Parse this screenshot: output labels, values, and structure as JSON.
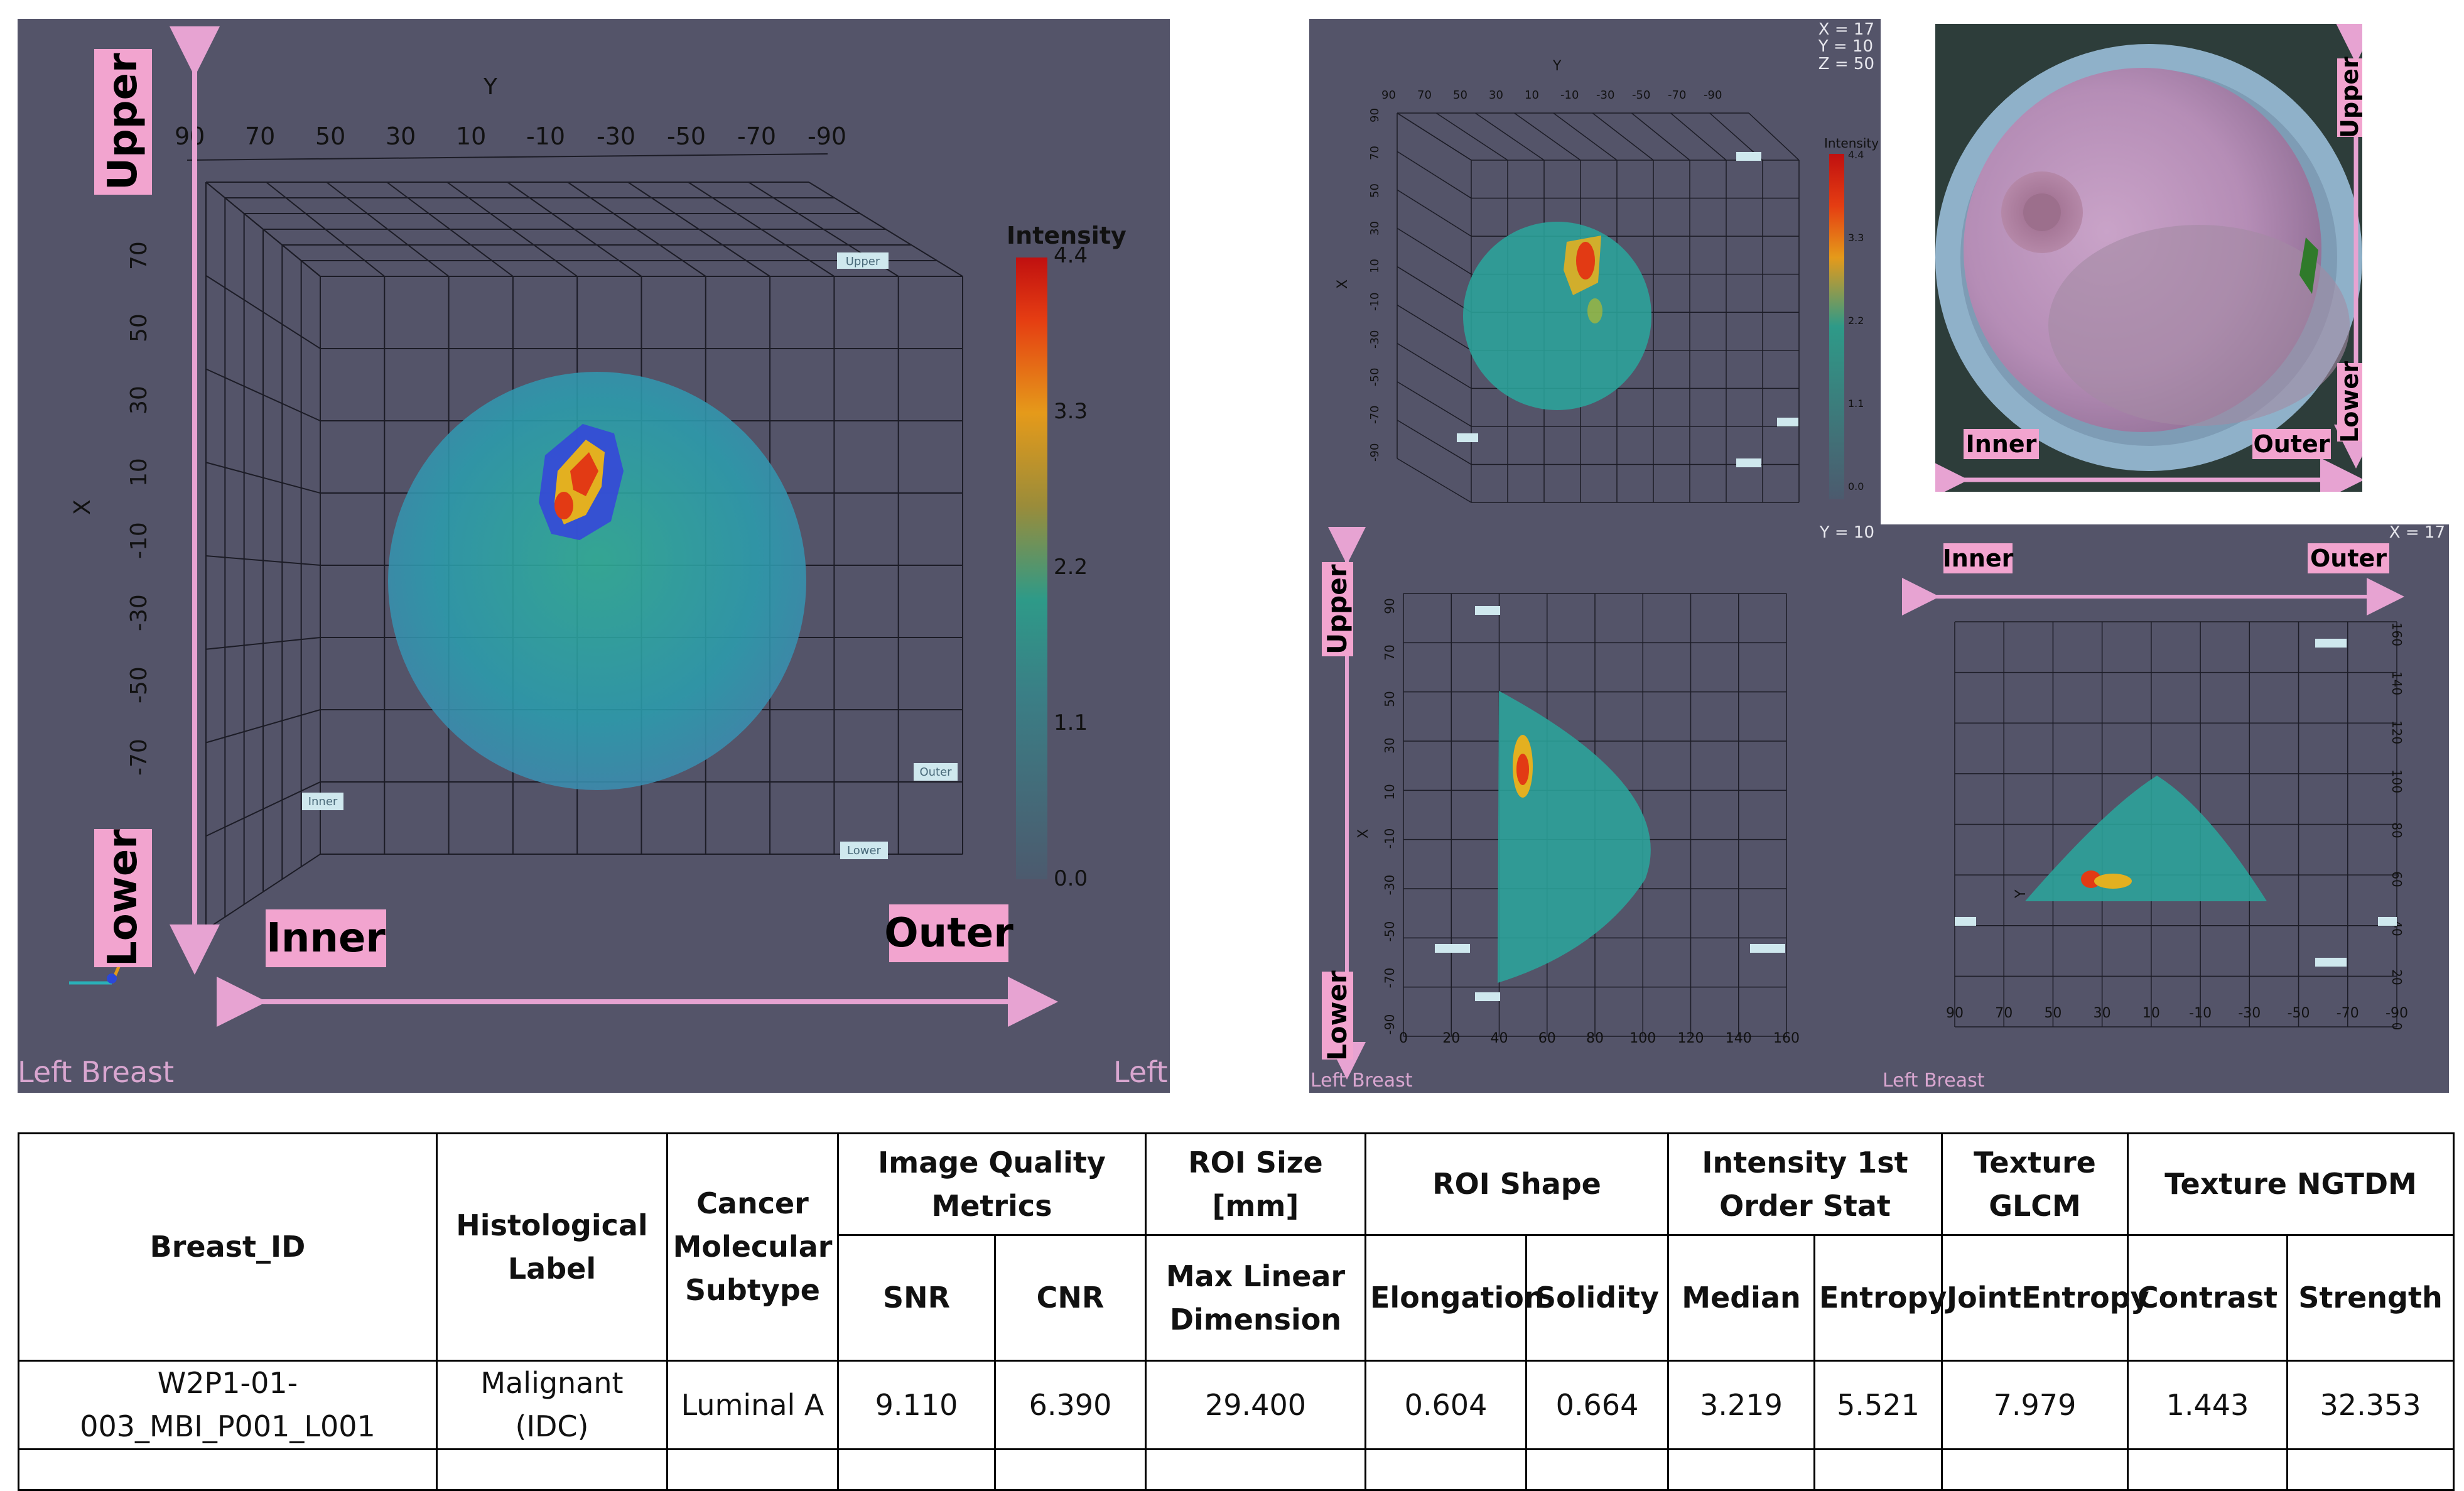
{
  "panels": {
    "main_3d": {
      "y_axis_title": "Y",
      "y_ticks": [
        "90",
        "70",
        "50",
        "30",
        "10",
        "-10",
        "-30",
        "-50",
        "-70",
        "-90"
      ],
      "x_axis_title": "X",
      "x_ticks": [
        "70",
        "50",
        "30",
        "10",
        "-10",
        "-30",
        "-50",
        "-70"
      ],
      "upper": "Upper",
      "lower": "Lower",
      "inner": "Inner",
      "outer": "Outer",
      "colorbar_title": "Intensity",
      "colorbar_ticks": [
        "4.4",
        "3.3",
        "2.2",
        "1.1",
        "0.0"
      ],
      "markers": [
        "Upper",
        "Inner",
        "Outer",
        "Lower"
      ],
      "footer_left": "Left Breast",
      "footer_right": "Left"
    },
    "top_3d": {
      "coords": "X = 17\nY = 10\nZ = 50",
      "y_axis_title": "Y",
      "y_ticks": [
        "90",
        "70",
        "50",
        "30",
        "10",
        "-10",
        "-30",
        "-50",
        "-70",
        "-90"
      ],
      "x_axis_title": "X",
      "x_ticks": [
        "90",
        "70",
        "50",
        "30",
        "10",
        "-10",
        "-30",
        "-50",
        "-70",
        "-90"
      ],
      "colorbar_title": "Intensity",
      "colorbar_ticks": [
        "4.4",
        "3.3",
        "2.2",
        "1.1",
        "0.0"
      ]
    },
    "photo": {
      "upper": "Upper",
      "lower": "Lower",
      "inner": "Inner",
      "outer": "Outer"
    },
    "side_view": {
      "coords": "Y = 10",
      "upper": "Upper",
      "lower": "Lower",
      "x_axis_title": "X",
      "y_ticks": [
        "90",
        "70",
        "50",
        "30",
        "10",
        "-10",
        "-30",
        "-50",
        "-70",
        "-90"
      ],
      "x_ticks": [
        "0",
        "20",
        "40",
        "60",
        "80",
        "100",
        "120",
        "140",
        "160"
      ],
      "footer": "Left Breast"
    },
    "front_view": {
      "coords": "X = 17",
      "inner": "Inner",
      "outer": "Outer",
      "y_axis_title": "Y",
      "right_ticks": [
        "160",
        "140",
        "120",
        "100",
        "80",
        "60",
        "40",
        "20",
        "0"
      ],
      "x_ticks": [
        "90",
        "70",
        "50",
        "30",
        "10",
        "-10",
        "-30",
        "-50",
        "-70",
        "-90"
      ],
      "footer": "Left Breast"
    }
  },
  "colors": {
    "panel_bg": "#545469",
    "pink": "#f2a4cf",
    "arrow": "#e7a3d2",
    "sphere": "#2aa7a0",
    "hot": "#e52b12"
  },
  "table": {
    "headers": {
      "breast_id": "Breast_ID",
      "histological": "Histological Label",
      "subtype": "Cancer Molecular Subtype",
      "iqm": "Image Quality Metrics",
      "roi_size": "ROI Size [mm]",
      "roi_shape": "ROI Shape",
      "intensity": "Intensity 1st Order Stat",
      "glcm": "Texture GLCM",
      "ngtdm": "Texture NGTDM"
    },
    "subheaders": {
      "snr": "SNR",
      "cnr": "CNR",
      "max_linear": "Max Linear Dimension",
      "elongation": "Elongation",
      "solidity": "Solidity",
      "median": "Median",
      "entropy": "Entropy",
      "joint_entropy": "JointEntropy",
      "contrast": "Contrast",
      "strength": "Strength"
    },
    "row": {
      "breast_id": "W2P1-01-003_MBI_P001_L001",
      "histological": "Malignant (IDC)",
      "subtype": "Luminal A",
      "snr": "9.110",
      "cnr": "6.390",
      "max_linear": "29.400",
      "elongation": "0.604",
      "solidity": "0.664",
      "median": "3.219",
      "entropy": "5.521",
      "joint_entropy": "7.979",
      "contrast": "1.443",
      "strength": "32.353"
    }
  }
}
